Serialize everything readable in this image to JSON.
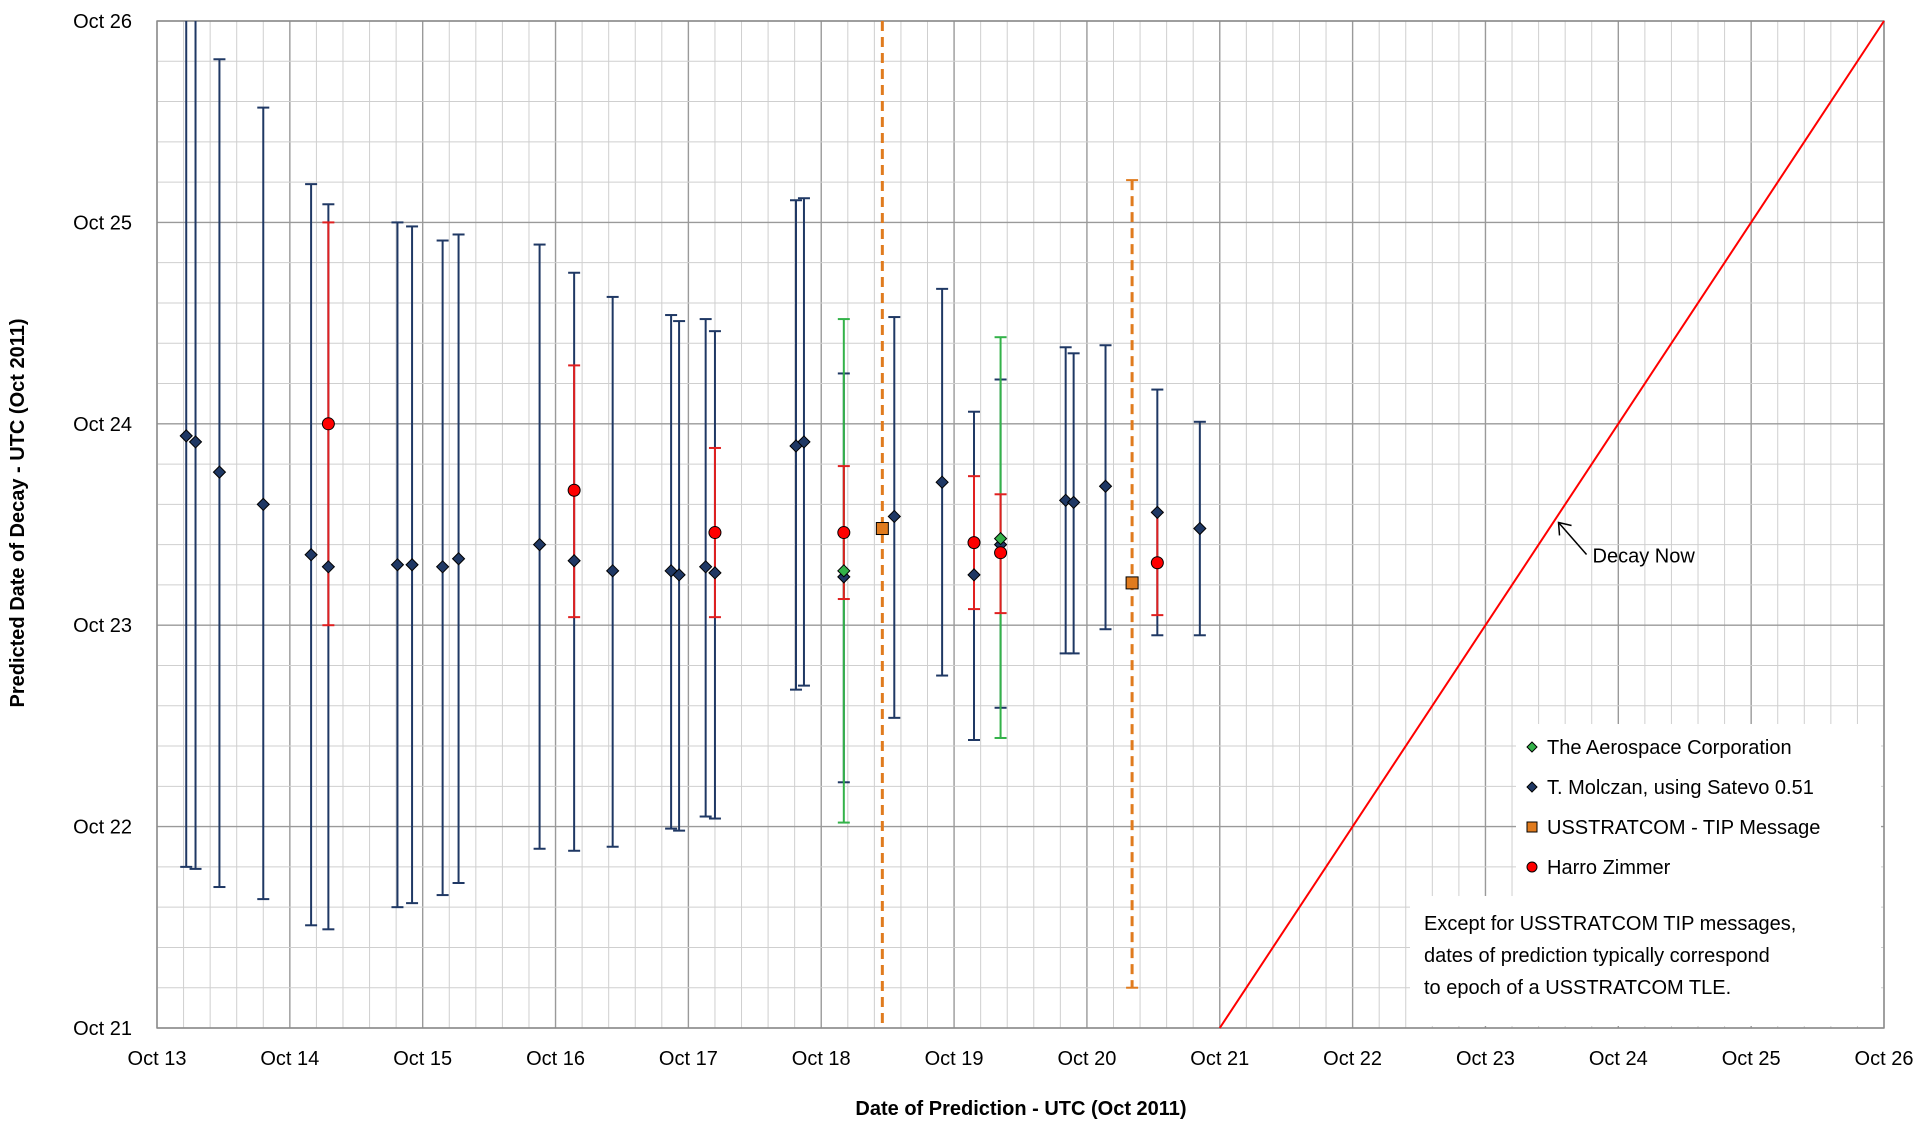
{
  "chart_data": {
    "type": "scatter",
    "title": "",
    "xlabel": "Date of Prediction - UTC (Oct 2011)",
    "ylabel": "Predicted Date of Decay - UTC (Oct 2011)",
    "x_tick_labels": [
      "Oct 13",
      "Oct 14",
      "Oct 15",
      "Oct 16",
      "Oct 17",
      "Oct 18",
      "Oct 19",
      "Oct 20",
      "Oct 21",
      "Oct 22",
      "Oct 23",
      "Oct 24",
      "Oct 25",
      "Oct 26"
    ],
    "y_tick_labels": [
      "Oct 26",
      "Oct 25",
      "Oct 24",
      "Oct 23",
      "Oct 22",
      "Oct 21"
    ],
    "xlim": [
      13,
      26
    ],
    "ylim": [
      21,
      26
    ],
    "minor_grid_step": 0.2,
    "colors": {
      "aerospace": "#33b249",
      "molczan": "#1f3864",
      "usstratcom": "#e07b1e",
      "zimmer": "#e02020",
      "zimmer_fill": "#ff0000",
      "diag": "#ff0000",
      "grid_major": "#9a9a9a",
      "grid_minor": "#cfcfcf"
    },
    "series": [
      {
        "name": "The Aerospace Corporation",
        "marker": "diamond",
        "points": [
          {
            "x": 18.17,
            "y": 23.27,
            "lo": 22.02,
            "hi": 24.52
          },
          {
            "x": 19.35,
            "y": 23.43,
            "lo": 22.44,
            "hi": 24.43
          }
        ]
      },
      {
        "name": "T. Molczan, using Satevo 0.51",
        "marker": "diamond",
        "points": [
          {
            "x": 13.22,
            "y": 23.94,
            "lo": 21.8,
            "hi": 26.0
          },
          {
            "x": 13.29,
            "y": 23.91,
            "lo": 21.79,
            "hi": 26.0
          },
          {
            "x": 13.47,
            "y": 23.76,
            "lo": 21.7,
            "hi": 25.81
          },
          {
            "x": 13.8,
            "y": 23.6,
            "lo": 21.64,
            "hi": 25.57
          },
          {
            "x": 14.16,
            "y": 23.35,
            "lo": 21.51,
            "hi": 25.19
          },
          {
            "x": 14.29,
            "y": 23.29,
            "lo": 21.49,
            "hi": 25.09
          },
          {
            "x": 14.81,
            "y": 23.3,
            "lo": 21.6,
            "hi": 25.0
          },
          {
            "x": 14.92,
            "y": 23.3,
            "lo": 21.62,
            "hi": 24.98
          },
          {
            "x": 15.15,
            "y": 23.29,
            "lo": 21.66,
            "hi": 24.91
          },
          {
            "x": 15.27,
            "y": 23.33,
            "lo": 21.72,
            "hi": 24.94
          },
          {
            "x": 15.88,
            "y": 23.4,
            "lo": 21.89,
            "hi": 24.89
          },
          {
            "x": 16.14,
            "y": 23.32,
            "lo": 21.88,
            "hi": 24.75
          },
          {
            "x": 16.43,
            "y": 23.27,
            "lo": 21.9,
            "hi": 24.63
          },
          {
            "x": 16.87,
            "y": 23.27,
            "lo": 21.99,
            "hi": 24.54
          },
          {
            "x": 16.93,
            "y": 23.25,
            "lo": 21.98,
            "hi": 24.51
          },
          {
            "x": 17.13,
            "y": 23.29,
            "lo": 22.05,
            "hi": 24.52
          },
          {
            "x": 17.2,
            "y": 23.26,
            "lo": 22.04,
            "hi": 24.46
          },
          {
            "x": 17.81,
            "y": 23.89,
            "lo": 22.68,
            "hi": 25.11
          },
          {
            "x": 17.87,
            "y": 23.91,
            "lo": 22.7,
            "hi": 25.12
          },
          {
            "x": 18.17,
            "y": 23.24,
            "lo": 22.22,
            "hi": 24.25
          },
          {
            "x": 18.55,
            "y": 23.54,
            "lo": 22.54,
            "hi": 24.53
          },
          {
            "x": 18.91,
            "y": 23.71,
            "lo": 22.75,
            "hi": 24.67
          },
          {
            "x": 19.15,
            "y": 23.25,
            "lo": 22.43,
            "hi": 24.06
          },
          {
            "x": 19.35,
            "y": 23.4,
            "lo": 22.59,
            "hi": 24.22
          },
          {
            "x": 19.84,
            "y": 23.62,
            "lo": 22.86,
            "hi": 24.38
          },
          {
            "x": 19.9,
            "y": 23.61,
            "lo": 22.86,
            "hi": 24.35
          },
          {
            "x": 20.14,
            "y": 23.69,
            "lo": 22.98,
            "hi": 24.39
          },
          {
            "x": 20.53,
            "y": 23.56,
            "lo": 22.95,
            "hi": 24.17
          },
          {
            "x": 20.85,
            "y": 23.48,
            "lo": 22.95,
            "hi": 24.01
          }
        ]
      },
      {
        "name": "USSTRATCOM - TIP Message",
        "marker": "square",
        "points": [
          {
            "x": 18.46,
            "y": 23.48,
            "lo": 21.0,
            "hi": 26.0
          },
          {
            "x": 20.34,
            "y": 23.21,
            "lo": 21.2,
            "hi": 25.21
          }
        ]
      },
      {
        "name": "Harro Zimmer",
        "marker": "circle",
        "points": [
          {
            "x": 14.29,
            "y": 24.0,
            "lo": 23.0,
            "hi": 25.0
          },
          {
            "x": 16.14,
            "y": 23.67,
            "lo": 23.04,
            "hi": 24.29
          },
          {
            "x": 17.2,
            "y": 23.46,
            "lo": 23.04,
            "hi": 23.88
          },
          {
            "x": 18.17,
            "y": 23.46,
            "lo": 23.13,
            "hi": 23.79
          },
          {
            "x": 19.15,
            "y": 23.41,
            "lo": 23.08,
            "hi": 23.74
          },
          {
            "x": 19.35,
            "y": 23.36,
            "lo": 23.06,
            "hi": 23.65
          },
          {
            "x": 20.53,
            "y": 23.31,
            "lo": 23.05,
            "hi": 23.56
          }
        ]
      }
    ],
    "reference_line": {
      "from": [
        21,
        21
      ],
      "to": [
        26,
        26
      ]
    },
    "annotation": {
      "text": "Decay Now",
      "point": [
        23.55,
        23.51
      ]
    },
    "note_lines": [
      "Except for USSTRATCOM TIP messages,",
      "dates of prediction typically correspond",
      "to epoch of a USSTRATCOM TLE."
    ],
    "legend_position": "bottom-right",
    "grid": true
  }
}
